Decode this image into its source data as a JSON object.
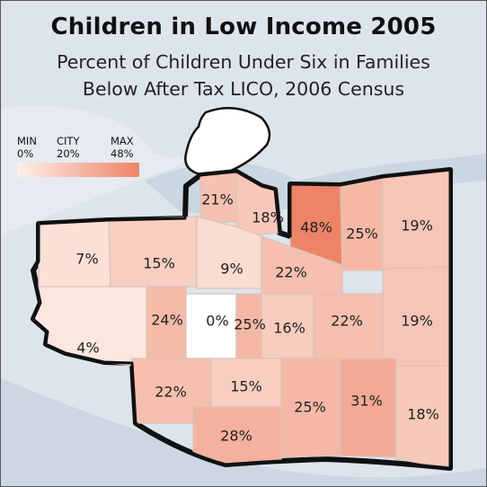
{
  "title": "Children in Low Income 2005",
  "subtitle_line1": "Percent of Children Under Six in Families",
  "subtitle_line2": "Below After Tax LICO, 2006 Census",
  "legend": {
    "min_label": "MIN",
    "city_label": "CITY",
    "max_label": "MAX",
    "min_value": "0%",
    "city_value": "20%",
    "max_value": "48%",
    "gradient_start": "#fdf0ea",
    "gradient_end": "#ee8467"
  },
  "colors": {
    "water": "#dde4ec",
    "land_outline": "#111111",
    "zone_border": "#d9c4bb"
  },
  "neighbourhoods": [
    {
      "label": "21%",
      "value": 21
    },
    {
      "label": "18%",
      "value": 18
    },
    {
      "label": "48%",
      "value": 48
    },
    {
      "label": "25%",
      "value": 25
    },
    {
      "label": "19%",
      "value": 19
    },
    {
      "label": "7%",
      "value": 7
    },
    {
      "label": "15%",
      "value": 15
    },
    {
      "label": "9%",
      "value": 9
    },
    {
      "label": "22%",
      "value": 22
    },
    {
      "label": "24%",
      "value": 24
    },
    {
      "label": "0%",
      "value": 0
    },
    {
      "label": "25%",
      "value": 25
    },
    {
      "label": "16%",
      "value": 16
    },
    {
      "label": "22%",
      "value": 22
    },
    {
      "label": "19%",
      "value": 19
    },
    {
      "label": "4%",
      "value": 4
    },
    {
      "label": "22%",
      "value": 22
    },
    {
      "label": "15%",
      "value": 15
    },
    {
      "label": "25%",
      "value": 25
    },
    {
      "label": "31%",
      "value": 31
    },
    {
      "label": "18%",
      "value": 18
    },
    {
      "label": "28%",
      "value": 28
    }
  ]
}
